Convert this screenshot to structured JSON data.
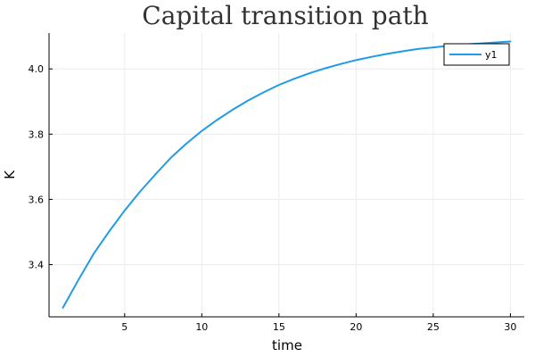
{
  "chart_data": {
    "type": "line",
    "title": "Capital transition path",
    "xlabel": "time",
    "ylabel": "K",
    "xlim": [
      0.1,
      30.9
    ],
    "ylim": [
      3.24,
      4.11
    ],
    "xticks": [
      5,
      10,
      15,
      20,
      25,
      30
    ],
    "yticks": [
      3.4,
      3.6,
      3.8,
      4.0
    ],
    "xtick_labels": [
      "5",
      "10",
      "15",
      "20",
      "25",
      "30"
    ],
    "ytick_labels": [
      "3.4",
      "3.6",
      "3.8",
      "4.0"
    ],
    "grid": true,
    "legend": {
      "position": "top-right"
    },
    "series": [
      {
        "name": "y1",
        "color": "#1f9be8",
        "x": [
          1,
          2,
          3,
          4,
          5,
          6,
          7,
          8,
          9,
          10,
          11,
          12,
          13,
          14,
          15,
          16,
          17,
          18,
          19,
          20,
          21,
          22,
          23,
          24,
          25,
          26,
          27,
          28,
          29,
          30
        ],
        "y": [
          3.268,
          3.353,
          3.434,
          3.502,
          3.566,
          3.624,
          3.677,
          3.728,
          3.771,
          3.81,
          3.844,
          3.875,
          3.903,
          3.928,
          3.951,
          3.97,
          3.987,
          4.002,
          4.015,
          4.027,
          4.037,
          4.046,
          4.054,
          4.061,
          4.066,
          4.071,
          4.075,
          4.078,
          4.081,
          4.084
        ]
      }
    ]
  }
}
